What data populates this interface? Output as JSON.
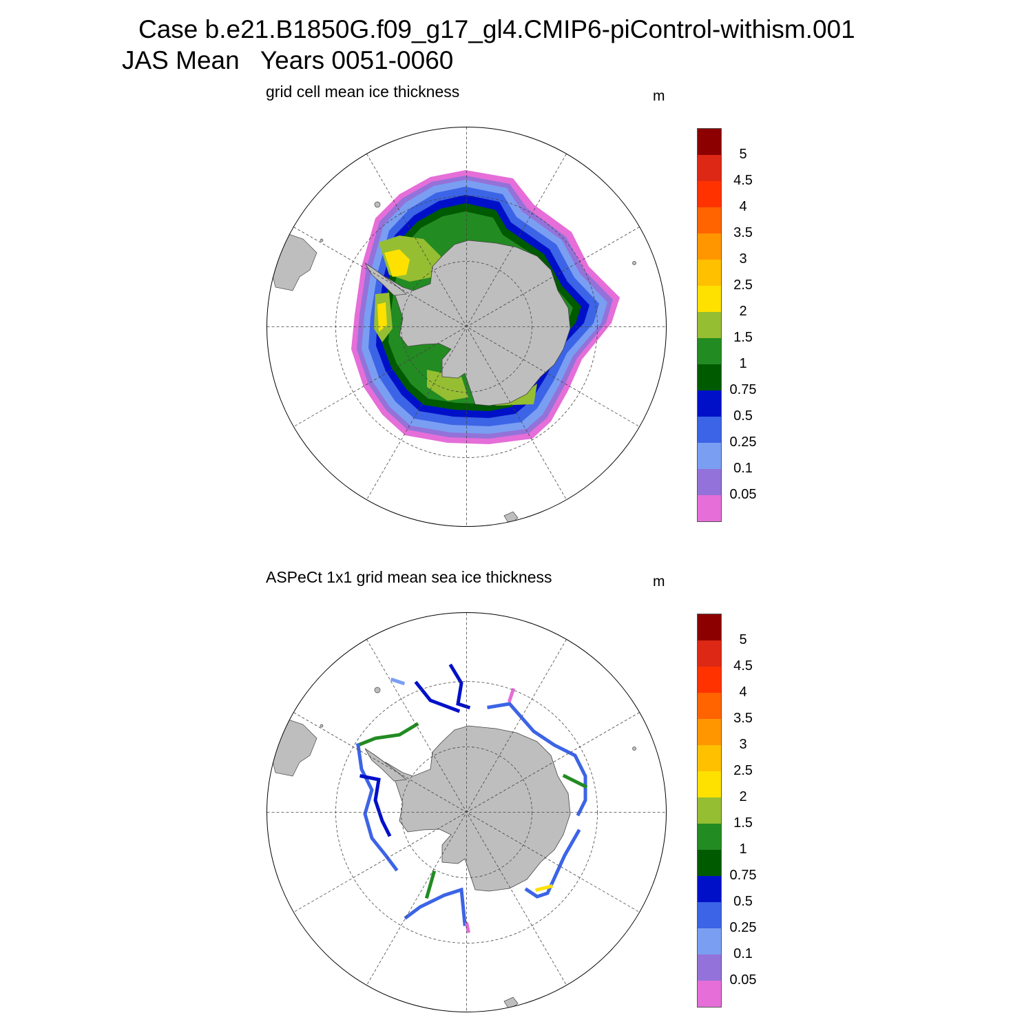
{
  "figure": {
    "title_line1": "Case b.e21.B1850G.f09_g17_gl4.CMIP6-piControl-withism.001",
    "title_line2": "JAS Mean   Years 0051-0060"
  },
  "colorbar": {
    "levels": [
      "0.05",
      "0.1",
      "0.25",
      "0.5",
      "0.75",
      "1",
      "1.5",
      "2",
      "2.5",
      "3",
      "3.5",
      "4",
      "4.5",
      "5"
    ],
    "colors": [
      "#e56ed8",
      "#9372d9",
      "#7a9ef2",
      "#3c64e6",
      "#0010c8",
      "#005a00",
      "#228b22",
      "#96be32",
      "#ffe100",
      "#ffc000",
      "#ff9600",
      "#ff6400",
      "#ff3200",
      "#dc2814",
      "#8c0000"
    ]
  },
  "panels": [
    {
      "id": "model",
      "title": "grid cell mean ice thickness",
      "units": "m",
      "field": "grid cell mean ice thickness"
    },
    {
      "id": "obs",
      "title": "ASPeCt 1x1 grid mean sea ice thickness",
      "units": "m",
      "field": "ASPeCt 1x1 grid mean sea ice thickness"
    }
  ],
  "map": {
    "projection": "south polar stereographic",
    "land_color": "#bebebe",
    "grid": "dashed",
    "meridian_spacing_deg": 30,
    "latitude_circles": 2
  }
}
